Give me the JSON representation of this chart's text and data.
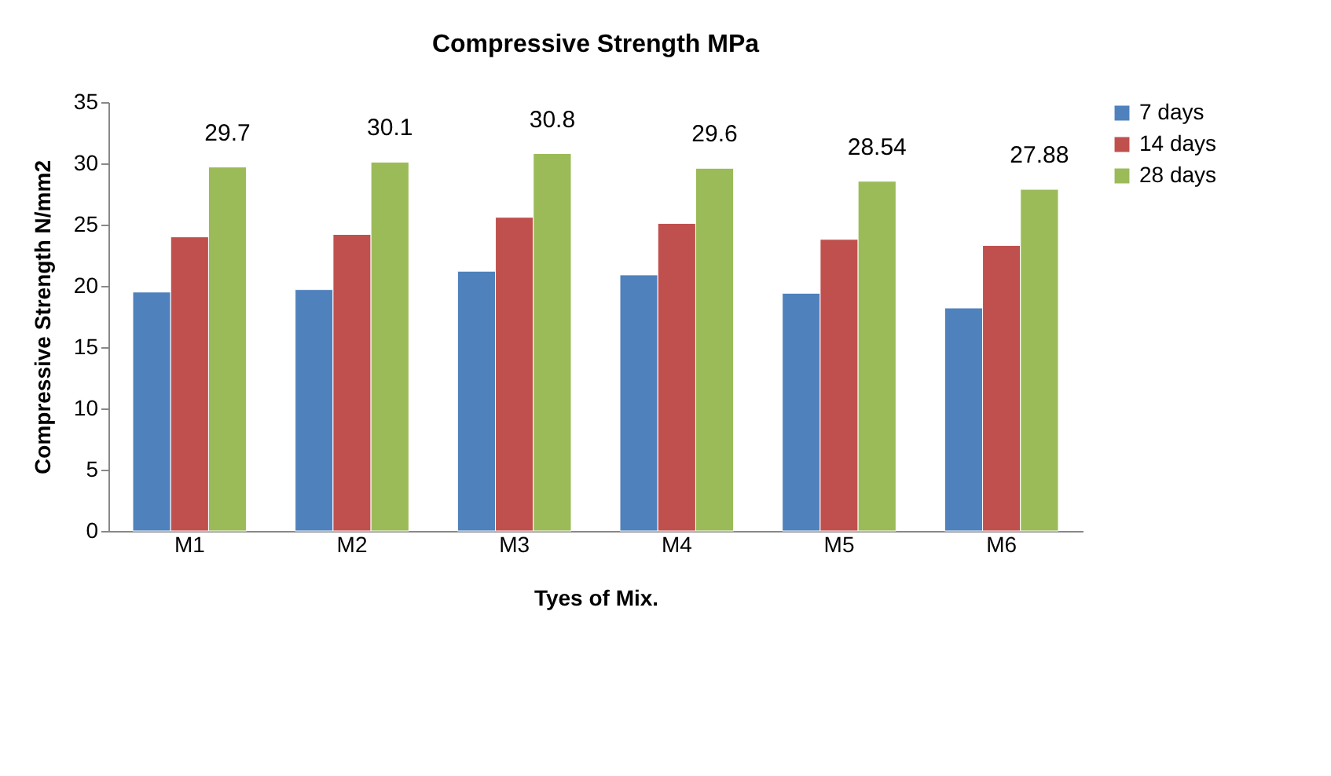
{
  "chart_data": {
    "type": "bar",
    "title": "Compressive Strength MPa",
    "xlabel": "Tyes of Mix.",
    "ylabel": "Compressive Strength N/mm2",
    "categories": [
      "M1",
      "M2",
      "M3",
      "M4",
      "M5",
      "M6"
    ],
    "series": [
      {
        "name": "7 days",
        "color": "#4f81bd",
        "values": [
          19.5,
          19.7,
          21.2,
          20.9,
          19.4,
          18.2
        ]
      },
      {
        "name": "14 days",
        "color": "#c0504d",
        "values": [
          24.0,
          24.2,
          25.6,
          25.1,
          23.8,
          23.3
        ]
      },
      {
        "name": "28 days",
        "color": "#9bbb59",
        "values": [
          29.7,
          30.1,
          30.8,
          29.6,
          28.54,
          27.88
        ],
        "value_labels": [
          "29.7",
          "30.1",
          "30.8",
          "29.6",
          "28.54",
          "27.88"
        ]
      }
    ],
    "ylim": [
      0,
      35
    ],
    "yticks": [
      0,
      5,
      10,
      15,
      20,
      25,
      30,
      35
    ],
    "grid": false,
    "legend": "right"
  }
}
